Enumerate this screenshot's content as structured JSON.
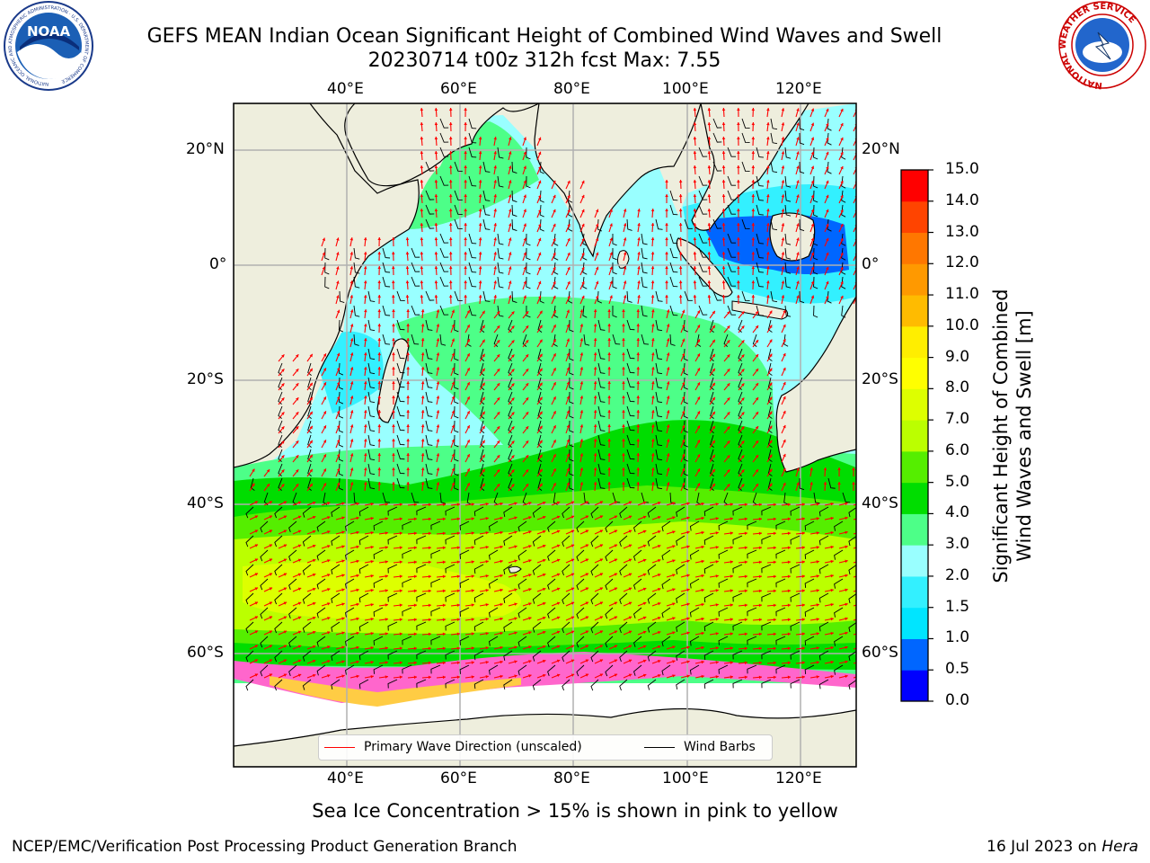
{
  "title": {
    "line1": "GEFS MEAN Indian Ocean Significant Height of Combined Wind Waves and Swell",
    "line2": "20230714 t00z 312h fcst   Max: 7.55"
  },
  "map": {
    "region": "Indian Ocean",
    "lon_range": [
      20,
      130
    ],
    "lat_range": [
      -70,
      28
    ],
    "lon_ticks": [
      "40°E",
      "60°E",
      "80°E",
      "100°E",
      "120°E"
    ],
    "lat_ticks": [
      "20°N",
      "0°",
      "20°S",
      "40°S",
      "60°S"
    ],
    "grid": true,
    "colors": {
      "land": "#eeeedd",
      "ice_free_sea_ice_area": "#ffffff",
      "gridline": "#b0b0b0",
      "wave_direction": "#ff0000",
      "wind_barb": "#000000"
    }
  },
  "colorbar": {
    "title_line1": "Significant Height of Combined",
    "title_line2": "Wind Waves and Swell [m]",
    "tick_labels": [
      "0.0",
      "0.5",
      "1.0",
      "1.5",
      "2.0",
      "3.0",
      "4.0",
      "5.0",
      "6.0",
      "7.0",
      "8.0",
      "9.0",
      "10.0",
      "11.0",
      "12.0",
      "13.0",
      "14.0",
      "15.0"
    ],
    "colors": [
      "#0000ff",
      "#0066ff",
      "#00e5ff",
      "#33f0ff",
      "#99ffff",
      "#4dff88",
      "#00dd00",
      "#55ee00",
      "#bbff00",
      "#ddff00",
      "#ffff00",
      "#ffee00",
      "#ffbb00",
      "#ff9900",
      "#ff7700",
      "#ff4400",
      "#ff0000"
    ]
  },
  "legend": {
    "wave_label": "Primary Wave Direction (unscaled)",
    "wind_label": "Wind Barbs"
  },
  "note": "Sea Ice Concentration > 15% is shown in pink to yellow",
  "footer": {
    "left": "NCEP/EMC/Verification Post Processing Product Generation Branch",
    "date": "16 Jul 2023 on ",
    "machine": "Hera"
  },
  "logos": {
    "noaa": "NOAA",
    "noaa_ring": "NATIONAL OCEANIC AND ATMOSPHERIC ADMINISTRATION · U.S. DEPARTMENT OF COMMERCE",
    "nws_ring": "NATIONAL WEATHER SERVICE"
  }
}
